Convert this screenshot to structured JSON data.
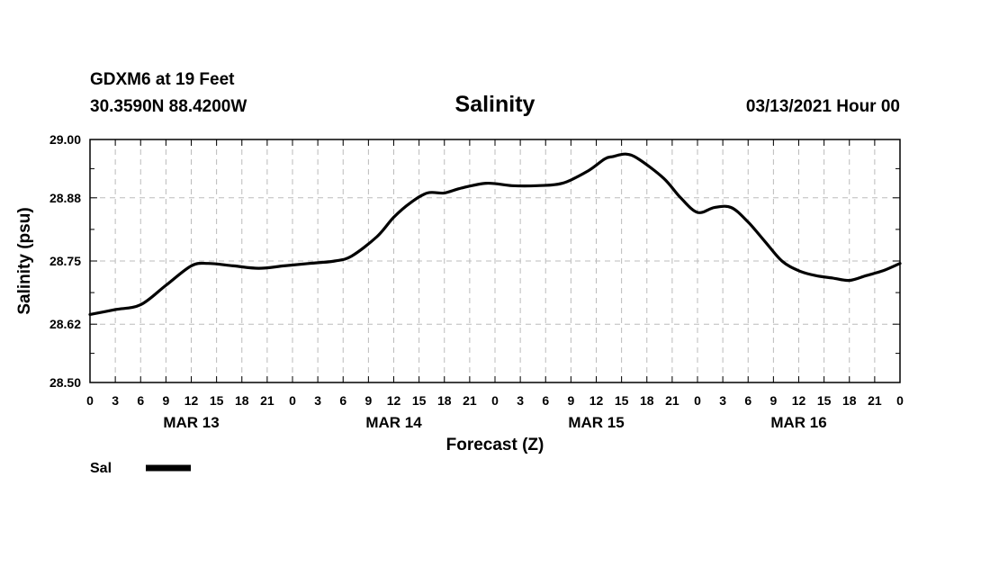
{
  "header": {
    "station": "GDXM6 at 19 Feet",
    "coords": "30.3590N 88.4200W",
    "datetime": "03/13/2021 Hour 00"
  },
  "chart_data": {
    "type": "line",
    "title": "Salinity",
    "xlabel": "Forecast (Z)",
    "ylabel": "Salinity (psu)",
    "ylim": [
      28.5,
      29.0
    ],
    "yticks": [
      28.5,
      28.62,
      28.75,
      28.88,
      29.0
    ],
    "ytick_labels": [
      "28.50",
      "28.62",
      "28.75",
      "28.88",
      "29.00"
    ],
    "xlim": [
      0,
      96
    ],
    "xtick_step_hours": 3,
    "xtick_labels": [
      "0",
      "3",
      "6",
      "9",
      "12",
      "15",
      "18",
      "21",
      "0",
      "3",
      "6",
      "9",
      "12",
      "15",
      "18",
      "21",
      "0",
      "3",
      "6",
      "9",
      "12",
      "15",
      "18",
      "21",
      "0",
      "3",
      "6",
      "9",
      "12",
      "15",
      "18",
      "21",
      "0"
    ],
    "day_labels": [
      {
        "label": "MAR 13",
        "hour": 12
      },
      {
        "label": "MAR 14",
        "hour": 36
      },
      {
        "label": "MAR 15",
        "hour": 60
      },
      {
        "label": "MAR 16",
        "hour": 84
      }
    ],
    "grid": true,
    "legend": {
      "placement": "bottom-left"
    },
    "series": [
      {
        "name": "Sal",
        "color": "#000000",
        "points": [
          [
            0,
            28.64
          ],
          [
            3,
            28.65
          ],
          [
            6,
            28.66
          ],
          [
            9,
            28.7
          ],
          [
            12,
            28.74
          ],
          [
            14,
            28.745
          ],
          [
            17,
            28.74
          ],
          [
            20,
            28.735
          ],
          [
            23,
            28.74
          ],
          [
            26,
            28.745
          ],
          [
            29,
            28.75
          ],
          [
            31,
            28.76
          ],
          [
            34,
            28.8
          ],
          [
            36,
            28.84
          ],
          [
            38,
            28.87
          ],
          [
            40,
            28.89
          ],
          [
            42,
            28.89
          ],
          [
            44,
            28.9
          ],
          [
            47,
            28.91
          ],
          [
            50,
            28.905
          ],
          [
            53,
            28.905
          ],
          [
            56,
            28.91
          ],
          [
            59,
            28.935
          ],
          [
            61,
            28.96
          ],
          [
            62,
            28.965
          ],
          [
            63.5,
            28.97
          ],
          [
            65,
            28.96
          ],
          [
            68,
            28.92
          ],
          [
            70,
            28.88
          ],
          [
            72,
            28.85
          ],
          [
            74,
            28.86
          ],
          [
            76,
            28.86
          ],
          [
            78,
            28.83
          ],
          [
            80,
            28.79
          ],
          [
            82,
            28.75
          ],
          [
            84,
            28.73
          ],
          [
            86,
            28.72
          ],
          [
            88,
            28.715
          ],
          [
            90,
            28.71
          ],
          [
            92,
            28.72
          ],
          [
            94,
            28.73
          ],
          [
            96,
            28.745
          ]
        ]
      }
    ]
  }
}
